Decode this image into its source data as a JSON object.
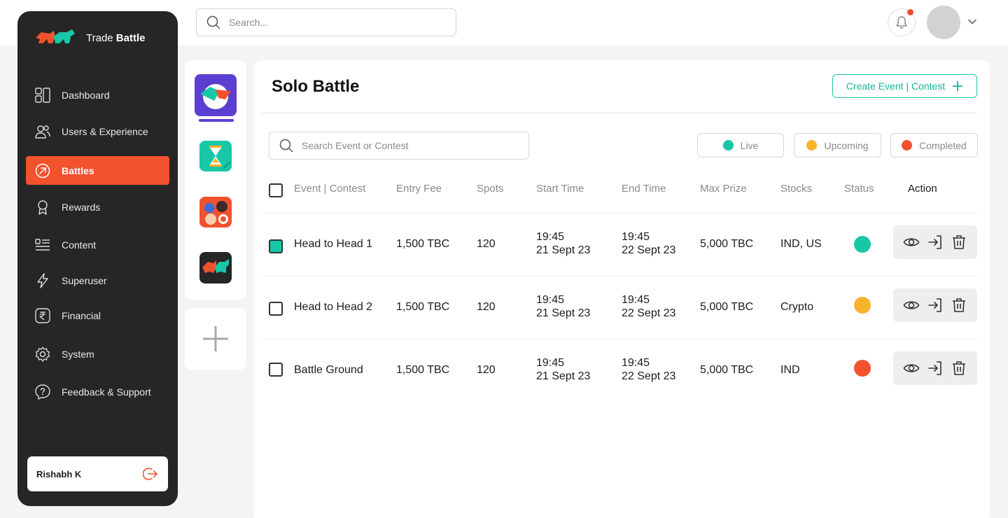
{
  "header": {
    "search_placeholder": "Search...",
    "notification_dot_color": "#f04a2f"
  },
  "brand": {
    "name_light": "Trade ",
    "name_bold": "Battle"
  },
  "sidebar": {
    "items": [
      {
        "label": "Dashboard",
        "icon": "dashboard-icon"
      },
      {
        "label": "Users & Experience",
        "icon": "users-icon"
      },
      {
        "label": "Battles",
        "icon": "battles-icon",
        "active": true
      },
      {
        "label": "Rewards",
        "icon": "rewards-icon"
      },
      {
        "label": "Content",
        "icon": "content-icon"
      },
      {
        "label": "Superuser",
        "icon": "lightning-icon"
      },
      {
        "label": "Financial",
        "icon": "rupee-icon"
      },
      {
        "label": "System",
        "icon": "gear-icon"
      },
      {
        "label": "Feedback & Support",
        "icon": "feedback-icon"
      }
    ],
    "user_name": "Rishabh K"
  },
  "main": {
    "title": "Solo Battle",
    "create_label": "Create Event | Contest",
    "search_placeholder": "Search Event or Contest",
    "filters": [
      {
        "label": "Live",
        "color": "#18c7a8"
      },
      {
        "label": "Upcoming",
        "color": "#f8b42c"
      },
      {
        "label": "Completed",
        "color": "#f2522e"
      }
    ],
    "columns": [
      "Event | Contest",
      "Entry Fee",
      "Spots",
      "Start Time",
      "End Time",
      "Max Prize",
      "Stocks",
      "Status",
      "Action"
    ],
    "rows": [
      {
        "name": "Head to Head 1",
        "fee": "1,500 TBC",
        "spots": "120",
        "start_time": "19:45",
        "start_date": "21 Sept 23",
        "end_time": "19:45",
        "end_date": "22 Sept 23",
        "prize": "5,000 TBC",
        "stocks": "IND, US",
        "status": "live",
        "status_color": "#18c7a8",
        "checked": true
      },
      {
        "name": "Head to Head 2",
        "fee": "1,500 TBC",
        "spots": "120",
        "start_time": "19:45",
        "start_date": "21 Sept 23",
        "end_time": "19:45",
        "end_date": "22 Sept 23",
        "prize": "5,000 TBC",
        "stocks": "Crypto",
        "status": "upcoming",
        "status_color": "#f8b42c",
        "checked": false
      },
      {
        "name": "Battle Ground",
        "fee": "1,500 TBC",
        "spots": "120",
        "start_time": "19:45",
        "start_date": "21 Sept 23",
        "end_time": "19:45",
        "end_date": "22 Sept 23",
        "prize": "5,000 TBC",
        "stocks": "IND",
        "status": "completed",
        "status_color": "#f2522e",
        "checked": false
      }
    ]
  }
}
